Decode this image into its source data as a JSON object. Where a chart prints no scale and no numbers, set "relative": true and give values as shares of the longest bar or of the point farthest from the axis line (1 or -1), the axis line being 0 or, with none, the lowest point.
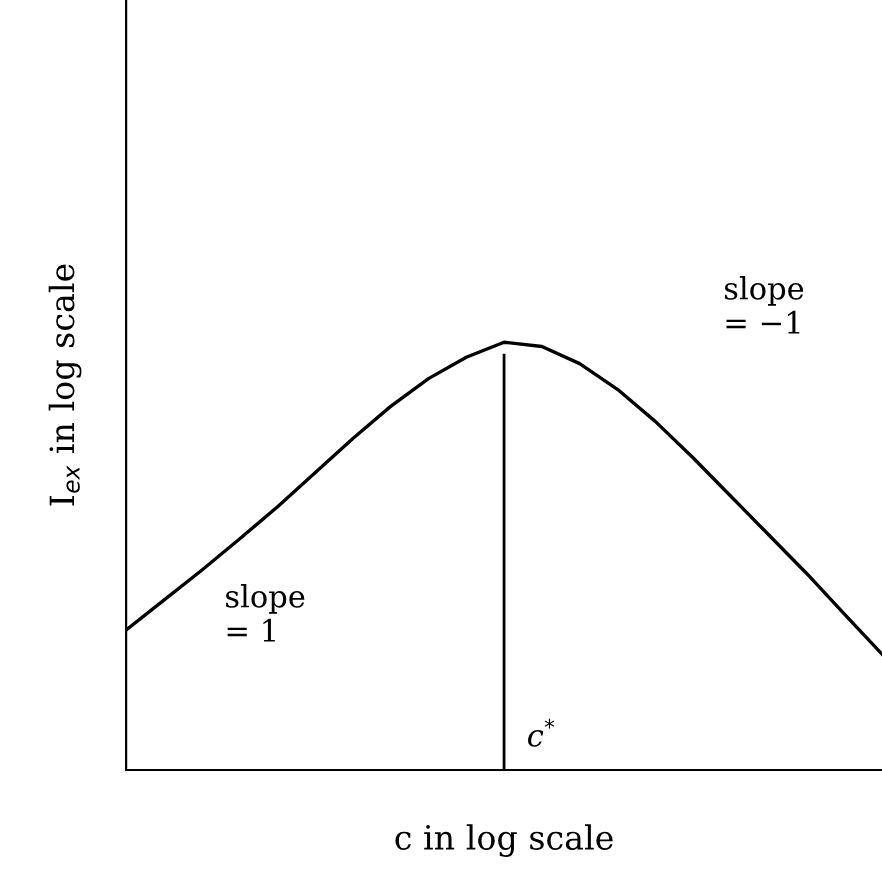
{
  "chart_data": {
    "type": "line",
    "relative": true,
    "xlabel": "c in log scale",
    "ylabel": "I$_{ex}$ in log scale",
    "legend": false,
    "marker": "none",
    "line_style": "solid",
    "categories": [
      null,
      null,
      null,
      null,
      null,
      null,
      null,
      null,
      null,
      null,
      null,
      null,
      null,
      null,
      null,
      null,
      null,
      null,
      null,
      null,
      null
    ],
    "series": [
      {
        "color": "#000000",
        "values": [
          0.327,
          0.397,
          0.467,
          0.54,
          0.615,
          0.695,
          0.775,
          0.85,
          0.915,
          0.965,
          1.0,
          0.99,
          0.95,
          0.89,
          0.815,
          0.73,
          0.64,
          0.55,
          0.46,
          0.365,
          0.271
        ]
      }
    ],
    "ref_lines": [
      {
        "axis": "x",
        "label": "c$^{*}$",
        "color": "#000000"
      }
    ],
    "annotations": [
      "slope\n= 1",
      "slope\n= −1"
    ]
  }
}
